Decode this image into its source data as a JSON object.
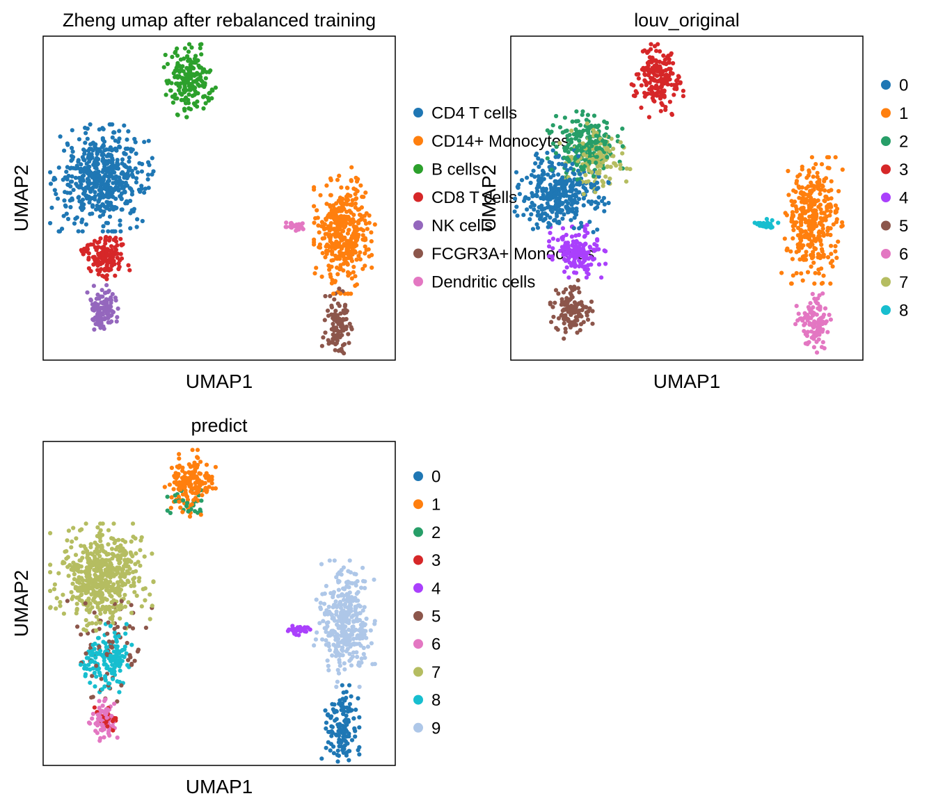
{
  "figure": {
    "x_axis_label": "UMAP1",
    "y_axis_label": "UMAP2"
  },
  "colors": {
    "c0": "#1f77b4",
    "c1": "#ff7f0e",
    "c2": "#279e68",
    "c3": "#d62728",
    "c4": "#aa40fc",
    "c5": "#8c564b",
    "c6": "#e377c2",
    "c7": "#b5bd61",
    "c8": "#17becf",
    "c9": "#aec7e8",
    "bcell_green": "#2ca02c",
    "nk_purple": "#9467bd"
  },
  "chart_data": [
    {
      "type": "scatter",
      "title": "Zheng umap after rebalanced training",
      "xlabel": "UMAP1",
      "ylabel": "UMAP2",
      "legend_position": "right",
      "legend": [
        {
          "label": "CD4 T cells",
          "color": "#1f77b4"
        },
        {
          "label": "CD14+ Monocytes",
          "color": "#ff7f0e"
        },
        {
          "label": "B cells",
          "color": "#2ca02c"
        },
        {
          "label": "CD8 T cells",
          "color": "#d62728"
        },
        {
          "label": "NK cells",
          "color": "#9467bd"
        },
        {
          "label": "FCGR3A+ Monocytes",
          "color": "#8c564b"
        },
        {
          "label": "Dendritic cells",
          "color": "#e377c2"
        }
      ],
      "clusters": [
        {
          "label": "CD4 T cells",
          "color": "#1f77b4",
          "center": [
            3.0,
            9.0
          ],
          "spread": [
            1.1,
            1.1
          ],
          "n": 520
        },
        {
          "label": "CD14+ Monocytes",
          "color": "#ff7f0e",
          "center": [
            15.4,
            6.4
          ],
          "spread": [
            0.65,
            1.3
          ],
          "n": 380
        },
        {
          "label": "B cells",
          "color": "#2ca02c",
          "center": [
            7.5,
            13.8
          ],
          "spread": [
            0.55,
            0.75
          ],
          "n": 200
        },
        {
          "label": "CD8 T cells",
          "color": "#d62728",
          "center": [
            3.1,
            5.2
          ],
          "spread": [
            0.55,
            0.5
          ],
          "n": 150
        },
        {
          "label": "NK cells",
          "color": "#9467bd",
          "center": [
            3.1,
            2.5
          ],
          "spread": [
            0.35,
            0.5
          ],
          "n": 110
        },
        {
          "label": "FCGR3A+ Monocytes",
          "color": "#8c564b",
          "center": [
            15.1,
            1.7
          ],
          "spread": [
            0.35,
            0.85
          ],
          "n": 110
        },
        {
          "label": "Dendritic cells",
          "color": "#e377c2",
          "center": [
            12.9,
            6.6
          ],
          "spread": [
            0.3,
            0.12
          ],
          "n": 30
        }
      ]
    },
    {
      "type": "scatter",
      "title": "louv_original",
      "xlabel": "UMAP1",
      "ylabel": "UMAP2",
      "legend_position": "right",
      "legend": [
        {
          "label": "0",
          "color": "#1f77b4"
        },
        {
          "label": "1",
          "color": "#ff7f0e"
        },
        {
          "label": "2",
          "color": "#279e68"
        },
        {
          "label": "3",
          "color": "#d62728"
        },
        {
          "label": "4",
          "color": "#aa40fc"
        },
        {
          "label": "5",
          "color": "#8c564b"
        },
        {
          "label": "6",
          "color": "#e377c2"
        },
        {
          "label": "7",
          "color": "#b5bd61"
        },
        {
          "label": "8",
          "color": "#17becf"
        }
      ],
      "clusters": [
        {
          "label": "0",
          "color": "#1f77b4",
          "center": [
            2.6,
            8.2
          ],
          "spread": [
            1.0,
            0.9
          ],
          "n": 330
        },
        {
          "label": "1",
          "color": "#ff7f0e",
          "center": [
            15.4,
            6.9
          ],
          "spread": [
            0.65,
            1.3
          ],
          "n": 340
        },
        {
          "label": "2",
          "color": "#279e68",
          "center": [
            3.8,
            10.6
          ],
          "spread": [
            0.8,
            0.7
          ],
          "n": 200
        },
        {
          "label": "3",
          "color": "#d62728",
          "center": [
            7.5,
            13.8
          ],
          "spread": [
            0.55,
            0.75
          ],
          "n": 200
        },
        {
          "label": "4",
          "color": "#aa40fc",
          "center": [
            3.4,
            5.4
          ],
          "spread": [
            0.6,
            0.55
          ],
          "n": 160
        },
        {
          "label": "5",
          "color": "#8c564b",
          "center": [
            3.1,
            2.5
          ],
          "spread": [
            0.45,
            0.6
          ],
          "n": 120
        },
        {
          "label": "6",
          "color": "#e377c2",
          "center": [
            15.5,
            1.8
          ],
          "spread": [
            0.4,
            0.8
          ],
          "n": 110
        },
        {
          "label": "7",
          "color": "#b5bd61",
          "center": [
            4.3,
            10.0
          ],
          "spread": [
            0.75,
            0.75
          ],
          "n": 130
        },
        {
          "label": "8",
          "color": "#17becf",
          "center": [
            13.0,
            6.7
          ],
          "spread": [
            0.35,
            0.12
          ],
          "n": 30
        }
      ]
    },
    {
      "type": "scatter",
      "title": "predict",
      "xlabel": "UMAP1",
      "ylabel": "UMAP2",
      "legend_position": "right",
      "legend": [
        {
          "label": "0",
          "color": "#1f77b4"
        },
        {
          "label": "1",
          "color": "#ff7f0e"
        },
        {
          "label": "2",
          "color": "#279e68"
        },
        {
          "label": "3",
          "color": "#d62728"
        },
        {
          "label": "4",
          "color": "#aa40fc"
        },
        {
          "label": "5",
          "color": "#8c564b"
        },
        {
          "label": "6",
          "color": "#e377c2"
        },
        {
          "label": "7",
          "color": "#b5bd61"
        },
        {
          "label": "8",
          "color": "#17becf"
        },
        {
          "label": "9",
          "color": "#aec7e8"
        }
      ],
      "clusters": [
        {
          "label": "0",
          "color": "#1f77b4",
          "center": [
            15.2,
            1.8
          ],
          "spread": [
            0.4,
            0.9
          ],
          "n": 130
        },
        {
          "label": "1",
          "color": "#ff7f0e",
          "center": [
            7.5,
            13.9
          ],
          "spread": [
            0.55,
            0.7
          ],
          "n": 170
        },
        {
          "label": "2",
          "color": "#279e68",
          "center": [
            7.4,
            12.8
          ],
          "spread": [
            0.5,
            0.4
          ],
          "n": 30
        },
        {
          "label": "3",
          "color": "#d62728",
          "center": [
            3.2,
            2.4
          ],
          "spread": [
            0.35,
            0.35
          ],
          "n": 30
        },
        {
          "label": "4",
          "color": "#aa40fc",
          "center": [
            13.0,
            6.7
          ],
          "spread": [
            0.3,
            0.12
          ],
          "n": 35
        },
        {
          "label": "5",
          "color": "#8c564b",
          "center": [
            3.4,
            6.0
          ],
          "spread": [
            0.9,
            1.2
          ],
          "n": 70
        },
        {
          "label": "6",
          "color": "#e377c2",
          "center": [
            3.1,
            2.3
          ],
          "spread": [
            0.35,
            0.45
          ],
          "n": 80
        },
        {
          "label": "7",
          "color": "#b5bd61",
          "center": [
            3.0,
            9.3
          ],
          "spread": [
            1.1,
            1.1
          ],
          "n": 520
        },
        {
          "label": "8",
          "color": "#17becf",
          "center": [
            3.3,
            5.3
          ],
          "spread": [
            0.6,
            0.7
          ],
          "n": 150
        },
        {
          "label": "9",
          "color": "#aec7e8",
          "center": [
            15.4,
            7.0
          ],
          "spread": [
            0.65,
            1.3
          ],
          "n": 330
        }
      ]
    }
  ]
}
